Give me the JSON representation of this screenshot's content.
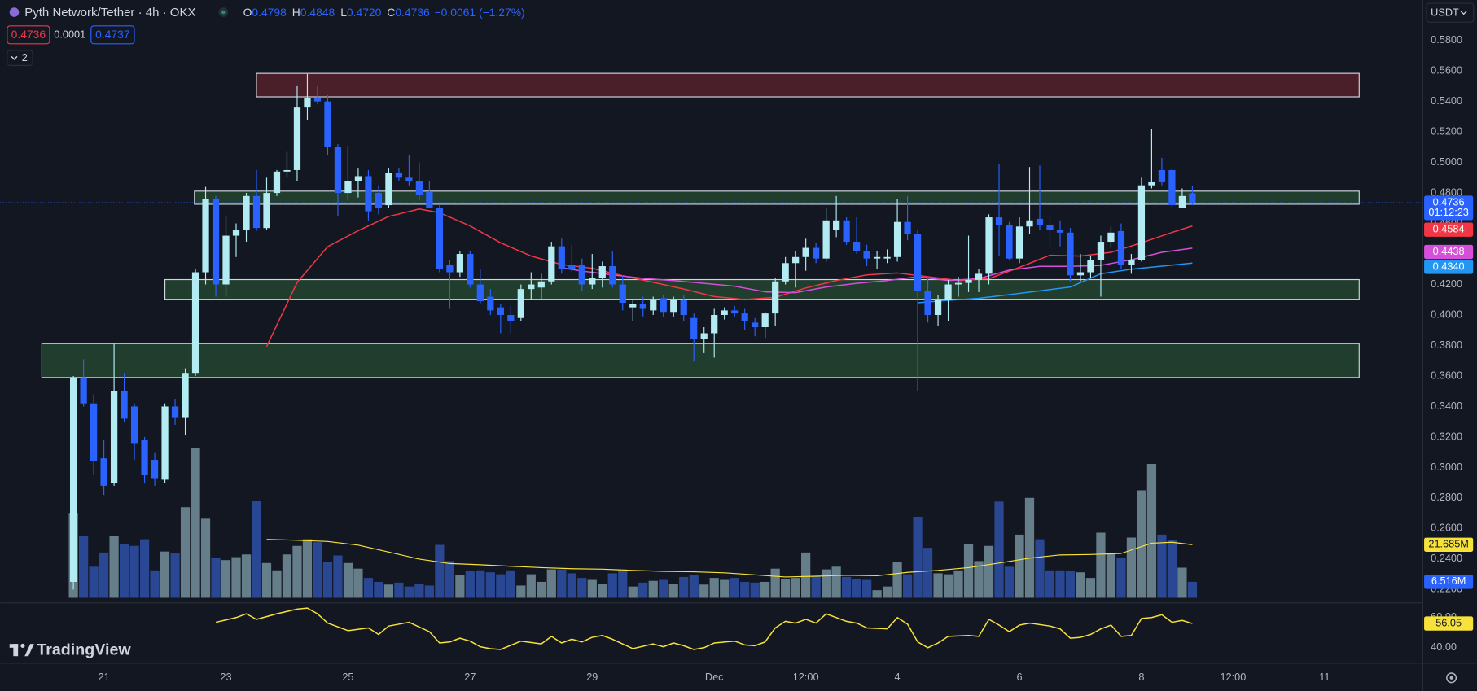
{
  "chart_data": {
    "type": "candlestick",
    "title": "Pyth Network/Tether · 4h · OKX",
    "ohlc_legend": [
      {
        "label": "O",
        "value": "0.4798"
      },
      {
        "label": "H",
        "value": "0.4848"
      },
      {
        "label": "L",
        "value": "0.4720"
      },
      {
        "label": "C",
        "value": "0.4736"
      }
    ],
    "change": "−0.0061 (−1.27%)",
    "sell_price": "0.4736",
    "spread": "0.0001",
    "buy_price": "0.4737",
    "indicators_count": "2",
    "currency": "USDT",
    "up_color": "#b2ebf2",
    "down_color": "#2962ff",
    "open": [
      0.225,
      0.359,
      0.342,
      0.306,
      0.29,
      0.35,
      0.34,
      0.318,
      0.305,
      0.292,
      0.34,
      0.333,
      0.362,
      0.428,
      0.476,
      0.42,
      0.452,
      0.456,
      0.478,
      0.457,
      0.48,
      0.494,
      0.495,
      0.536,
      0.542,
      0.54,
      0.51,
      0.48,
      0.488,
      0.491,
      0.48,
      0.472,
      0.493,
      0.49,
      0.488,
      0.481,
      0.47,
      0.433,
      0.428,
      0.44,
      0.42,
      0.412,
      0.405,
      0.4,
      0.398,
      0.417,
      0.418,
      0.422,
      0.445,
      0.433,
      0.433,
      0.42,
      0.424,
      0.432,
      0.42,
      0.405,
      0.407,
      0.403,
      0.411,
      0.402,
      0.41,
      0.398,
      0.384,
      0.388,
      0.4,
      0.403,
      0.401,
      0.395,
      0.392,
      0.401,
      0.422,
      0.434,
      0.438,
      0.444,
      0.437,
      0.456,
      0.462,
      0.448,
      0.442,
      0.437,
      0.437,
      0.438,
      0.461,
      0.453,
      0.416,
      0.4,
      0.41,
      0.42,
      0.421,
      0.423,
      0.427,
      0.464,
      0.459,
      0.437,
      0.458,
      0.463,
      0.459,
      0.456,
      0.454,
      0.426,
      0.428,
      0.436,
      0.448,
      0.455,
      0.433,
      0.436,
      0.485,
      0.495,
      0.495,
      0.47,
      0.4798
    ],
    "high": [
      0.36,
      0.371,
      0.348,
      0.318,
      0.381,
      0.362,
      0.342,
      0.32,
      0.31,
      0.342,
      0.345,
      0.365,
      0.43,
      0.484,
      0.478,
      0.465,
      0.46,
      0.48,
      0.495,
      0.49,
      0.495,
      0.507,
      0.55,
      0.558,
      0.55,
      0.544,
      0.512,
      0.511,
      0.496,
      0.495,
      0.485,
      0.496,
      0.496,
      0.505,
      0.5,
      0.488,
      0.472,
      0.436,
      0.442,
      0.442,
      0.43,
      0.417,
      0.407,
      0.406,
      0.42,
      0.428,
      0.427,
      0.448,
      0.45,
      0.446,
      0.437,
      0.44,
      0.435,
      0.442,
      0.426,
      0.41,
      0.412,
      0.412,
      0.413,
      0.412,
      0.413,
      0.401,
      0.392,
      0.404,
      0.405,
      0.406,
      0.404,
      0.398,
      0.402,
      0.424,
      0.438,
      0.442,
      0.45,
      0.447,
      0.47,
      0.478,
      0.464,
      0.464,
      0.446,
      0.442,
      0.443,
      0.476,
      0.478,
      0.456,
      0.424,
      0.413,
      0.423,
      0.425,
      0.452,
      0.43,
      0.466,
      0.499,
      0.461,
      0.464,
      0.497,
      0.498,
      0.464,
      0.462,
      0.457,
      0.44,
      0.439,
      0.452,
      0.458,
      0.46,
      0.44,
      0.49,
      0.522,
      0.503,
      0.496,
      0.483,
      0.4848
    ],
    "low": [
      0.22,
      0.34,
      0.295,
      0.282,
      0.288,
      0.33,
      0.305,
      0.29,
      0.288,
      0.29,
      0.328,
      0.321,
      0.36,
      0.42,
      0.412,
      0.412,
      0.438,
      0.448,
      0.455,
      0.456,
      0.478,
      0.49,
      0.488,
      0.528,
      0.538,
      0.505,
      0.465,
      0.475,
      0.477,
      0.462,
      0.466,
      0.47,
      0.488,
      0.485,
      0.475,
      0.47,
      0.428,
      0.404,
      0.425,
      0.418,
      0.407,
      0.4,
      0.388,
      0.388,
      0.396,
      0.41,
      0.41,
      0.42,
      0.427,
      0.428,
      0.416,
      0.417,
      0.418,
      0.418,
      0.403,
      0.396,
      0.399,
      0.4,
      0.399,
      0.399,
      0.396,
      0.37,
      0.375,
      0.372,
      0.397,
      0.399,
      0.39,
      0.386,
      0.385,
      0.393,
      0.42,
      0.418,
      0.429,
      0.434,
      0.435,
      0.451,
      0.446,
      0.44,
      0.432,
      0.43,
      0.434,
      0.435,
      0.449,
      0.35,
      0.395,
      0.393,
      0.396,
      0.412,
      0.415,
      0.415,
      0.42,
      0.439,
      0.436,
      0.434,
      0.453,
      0.456,
      0.444,
      0.445,
      0.422,
      0.422,
      0.424,
      0.412,
      0.444,
      0.43,
      0.427,
      0.435,
      0.483,
      0.485,
      0.47,
      0.47,
      0.472
    ],
    "close": [
      0.359,
      0.342,
      0.304,
      0.288,
      0.35,
      0.332,
      0.316,
      0.295,
      0.293,
      0.34,
      0.333,
      0.362,
      0.428,
      0.476,
      0.42,
      0.452,
      0.456,
      0.478,
      0.457,
      0.48,
      0.494,
      0.495,
      0.536,
      0.542,
      0.54,
      0.51,
      0.48,
      0.488,
      0.491,
      0.468,
      0.47,
      0.493,
      0.49,
      0.488,
      0.479,
      0.47,
      0.43,
      0.428,
      0.44,
      0.42,
      0.409,
      0.403,
      0.4,
      0.396,
      0.417,
      0.42,
      0.422,
      0.445,
      0.43,
      0.43,
      0.42,
      0.424,
      0.432,
      0.42,
      0.408,
      0.407,
      0.404,
      0.41,
      0.402,
      0.41,
      0.4,
      0.384,
      0.388,
      0.4,
      0.403,
      0.401,
      0.396,
      0.392,
      0.401,
      0.422,
      0.434,
      0.438,
      0.444,
      0.437,
      0.462,
      0.462,
      0.448,
      0.442,
      0.437,
      0.438,
      0.438,
      0.461,
      0.453,
      0.416,
      0.4,
      0.41,
      0.42,
      0.421,
      0.423,
      0.427,
      0.464,
      0.459,
      0.437,
      0.458,
      0.462,
      0.459,
      0.456,
      0.454,
      0.426,
      0.428,
      0.436,
      0.448,
      0.454,
      0.433,
      0.436,
      0.485,
      0.487,
      0.487,
      0.472,
      0.478,
      0.4736
    ],
    "xlim": [
      -7.2,
      132.6
    ],
    "xticks": [
      {
        "value": 3,
        "label": "21"
      },
      {
        "value": 15,
        "label": "23"
      },
      {
        "value": 27,
        "label": "25"
      },
      {
        "value": 39,
        "label": "27"
      },
      {
        "value": 51,
        "label": "29"
      },
      {
        "value": 63,
        "label": "Dec"
      },
      {
        "value": 72,
        "label": "12:00"
      },
      {
        "value": 81,
        "label": "4"
      },
      {
        "value": 93,
        "label": "6"
      },
      {
        "value": 105,
        "label": "8"
      },
      {
        "value": 114,
        "label": "12:00"
      },
      {
        "value": 123,
        "label": "11"
      }
    ],
    "ylim": [
      0.2115,
      0.6065
    ],
    "yticks": [
      {
        "value": 0.58,
        "label": "0.5800"
      },
      {
        "value": 0.56,
        "label": "0.5600"
      },
      {
        "value": 0.54,
        "label": "0.5400"
      },
      {
        "value": 0.52,
        "label": "0.5200"
      },
      {
        "value": 0.5,
        "label": "0.5000"
      },
      {
        "value": 0.48,
        "label": "0.4800"
      },
      {
        "value": 0.46,
        "label": "0.4600"
      },
      {
        "value": 0.44,
        "label": "0.4400"
      },
      {
        "value": 0.42,
        "label": "0.4200"
      },
      {
        "value": 0.4,
        "label": "0.4000"
      },
      {
        "value": 0.38,
        "label": "0.3800"
      },
      {
        "value": 0.36,
        "label": "0.3600"
      },
      {
        "value": 0.34,
        "label": "0.3400"
      },
      {
        "value": 0.32,
        "label": "0.3200"
      },
      {
        "value": 0.3,
        "label": "0.3000"
      },
      {
        "value": 0.28,
        "label": "0.2800"
      },
      {
        "value": 0.26,
        "label": "0.2600"
      },
      {
        "value": 0.24,
        "label": "0.2400"
      },
      {
        "value": 0.22,
        "label": "0.2200"
      }
    ],
    "last_price": {
      "value": 0.4736,
      "label": "0.4736",
      "countdown": "01:12:23",
      "color": "#2962ff"
    },
    "moving_averages": [
      {
        "color": "#f23645",
        "x": [
          19,
          22,
          25,
          28,
          31,
          34,
          36,
          39,
          42,
          45,
          48,
          51,
          54,
          57,
          60,
          63,
          66,
          69,
          72,
          75,
          78,
          81,
          84,
          87,
          90,
          93,
          96,
          99,
          102,
          105,
          108,
          110
        ],
        "values": [
          0.3794,
          0.4214,
          0.4448,
          0.4553,
          0.4646,
          0.4695,
          0.467,
          0.4584,
          0.4473,
          0.4386,
          0.4331,
          0.4306,
          0.4257,
          0.4214,
          0.417,
          0.4121,
          0.4102,
          0.4115,
          0.4177,
          0.4226,
          0.4263,
          0.4275,
          0.4251,
          0.4226,
          0.4238,
          0.4312,
          0.4392,
          0.4386,
          0.4411,
          0.4473,
          0.4541,
          0.4584
        ],
        "last": {
          "value": 0.4584,
          "label": "0.4584"
        }
      },
      {
        "color": "#d54fd9",
        "x": [
          48,
          50,
          53,
          56,
          59,
          62,
          65,
          68,
          71,
          74,
          77,
          80,
          83,
          86,
          89,
          92,
          95,
          98,
          101,
          104,
          107,
          110
        ],
        "values": [
          0.431,
          0.4288,
          0.4263,
          0.424,
          0.4226,
          0.4207,
          0.4189,
          0.4152,
          0.4146,
          0.4183,
          0.4207,
          0.4226,
          0.4251,
          0.4226,
          0.4238,
          0.4294,
          0.4319,
          0.4319,
          0.4325,
          0.4362,
          0.4411,
          0.4438
        ],
        "last": {
          "value": 0.4438,
          "label": "0.4438"
        }
      },
      {
        "color": "#2196f3",
        "x": [
          83,
          86,
          89,
          92,
          95,
          98,
          101,
          104,
          107,
          110
        ],
        "values": [
          0.408,
          0.4096,
          0.4109,
          0.4133,
          0.4158,
          0.4183,
          0.427,
          0.43,
          0.432,
          0.434
        ],
        "last": {
          "value": 0.434,
          "label": "0.4340"
        }
      }
    ],
    "zones": [
      {
        "x": [
          18.0,
          126.4
        ],
        "y": [
          0.543,
          0.5584
        ],
        "color": "#f23645"
      },
      {
        "x": [
          11.9,
          126.4
        ],
        "y": [
          0.4726,
          0.4812
        ],
        "color": "#4caf50"
      },
      {
        "x": [
          9.0,
          126.4
        ],
        "y": [
          0.4103,
          0.4232
        ],
        "color": "#4caf50"
      },
      {
        "x": [
          -3.1,
          126.4
        ],
        "y": [
          0.359,
          0.3812
        ],
        "color": "#4caf50"
      }
    ],
    "volume": {
      "up_color": "#6f8a96",
      "down_color": "#2c4d9e",
      "ylim": [
        0,
        130
      ],
      "values": [
        34.7,
        25.4,
        12.7,
        18.5,
        25.4,
        21.9,
        21.2,
        23.9,
        11.2,
        18.9,
        18.1,
        37.0,
        61.2,
        32.3,
        16.2,
        15.4,
        16.6,
        17.7,
        39.7,
        14.2,
        11.2,
        17.7,
        21.2,
        23.9,
        22.7,
        14.6,
        17.3,
        14.2,
        11.9,
        8.1,
        6.5,
        5.4,
        6.2,
        4.6,
        5.8,
        5.0,
        21.6,
        15.0,
        9.2,
        10.8,
        11.2,
        10.4,
        9.6,
        11.2,
        5.0,
        9.6,
        6.5,
        11.6,
        11.6,
        10.0,
        8.1,
        7.3,
        5.8,
        10.0,
        11.6,
        4.6,
        6.2,
        6.9,
        7.3,
        5.8,
        8.5,
        9.2,
        5.4,
        8.1,
        7.3,
        8.1,
        6.5,
        6.2,
        6.5,
        11.9,
        7.7,
        8.1,
        18.5,
        8.9,
        11.6,
        12.7,
        8.5,
        7.7,
        7.3,
        3.1,
        4.6,
        14.6,
        9.6,
        33.1,
        20.4,
        10.0,
        9.6,
        11.2,
        21.9,
        15.0,
        21.2,
        39.3,
        12.7,
        25.8,
        40.8,
        23.9,
        11.2,
        11.2,
        10.8,
        10.4,
        8.1,
        26.6,
        18.1,
        16.2,
        24.6,
        43.9,
        54.7,
        25.8,
        23.5,
        12.3,
        6.516
      ],
      "last": {
        "value": 6.516,
        "label": "6.516M"
      },
      "ma": {
        "color": "#f7e13b",
        "x": [
          19,
          22,
          25,
          28,
          31,
          34,
          37,
          40,
          43,
          46,
          49,
          52,
          55,
          58,
          61,
          64,
          67,
          70,
          73,
          76,
          79,
          82,
          85,
          88,
          91,
          94,
          97,
          100,
          103,
          106,
          108,
          110
        ],
        "values": [
          23.9,
          23.5,
          23.0,
          21.5,
          18.7,
          15.8,
          14.0,
          13.5,
          12.9,
          12.3,
          11.9,
          11.7,
          11.2,
          10.8,
          10.6,
          10.2,
          9.4,
          8.5,
          8.8,
          9.2,
          9.0,
          10.4,
          11.2,
          12.3,
          14.2,
          16.2,
          17.5,
          17.7,
          18.1,
          22.3,
          22.7,
          21.685
        ],
        "last": {
          "value": 21.685,
          "label": "21.685M"
        }
      }
    },
    "rsi": {
      "color": "#f7e13b",
      "ylim": [
        32.5,
        68.75
      ],
      "yticks": [
        {
          "value": 60,
          "label": "60.00"
        },
        {
          "value": 40,
          "label": "40.00"
        }
      ],
      "x": [
        14,
        16,
        17,
        18,
        20,
        22,
        23,
        24,
        25,
        27,
        29,
        30,
        31,
        33,
        35,
        36,
        37,
        38,
        39,
        40,
        41,
        42,
        44,
        46,
        47,
        48,
        49,
        50,
        51,
        52,
        53,
        55,
        57,
        58,
        59,
        60,
        61,
        62,
        63,
        65,
        66,
        67,
        68,
        69,
        70,
        71,
        72,
        73,
        74,
        75,
        76,
        77,
        78,
        80,
        81,
        82,
        83,
        84,
        85,
        86,
        88,
        89,
        90,
        91,
        92,
        93,
        94,
        96,
        97,
        98,
        99,
        100,
        101,
        102,
        103,
        104,
        105,
        106,
        107,
        108,
        109,
        110
      ],
      "values": [
        56.9,
        60,
        62.5,
        58.8,
        62.5,
        65.6,
        66.3,
        62.5,
        56.3,
        51.3,
        53.1,
        48.8,
        54.4,
        56.9,
        50.6,
        43.1,
        43.8,
        46.3,
        44.4,
        40.6,
        39.4,
        38.8,
        44.4,
        42.5,
        47.5,
        43.1,
        45.6,
        43.8,
        46.9,
        48.1,
        45.6,
        39.4,
        42.5,
        40.6,
        43.1,
        41.3,
        38.8,
        40,
        43.1,
        44.4,
        41.9,
        41.3,
        43.8,
        53.1,
        57.5,
        56.3,
        58.8,
        56.3,
        62.5,
        60,
        57.5,
        56.3,
        53.1,
        52.5,
        60,
        55.6,
        43.8,
        40,
        43.1,
        47.5,
        48.1,
        47.5,
        58.8,
        55,
        50.6,
        55,
        56.3,
        54.4,
        52.5,
        46.3,
        46.9,
        48.8,
        52.5,
        55,
        47.5,
        48.1,
        59.4,
        60,
        61.9,
        56.9,
        58.1,
        56.05
      ],
      "last": {
        "value": 56.05,
        "label": "56.05"
      }
    }
  },
  "brand": "TradingView"
}
